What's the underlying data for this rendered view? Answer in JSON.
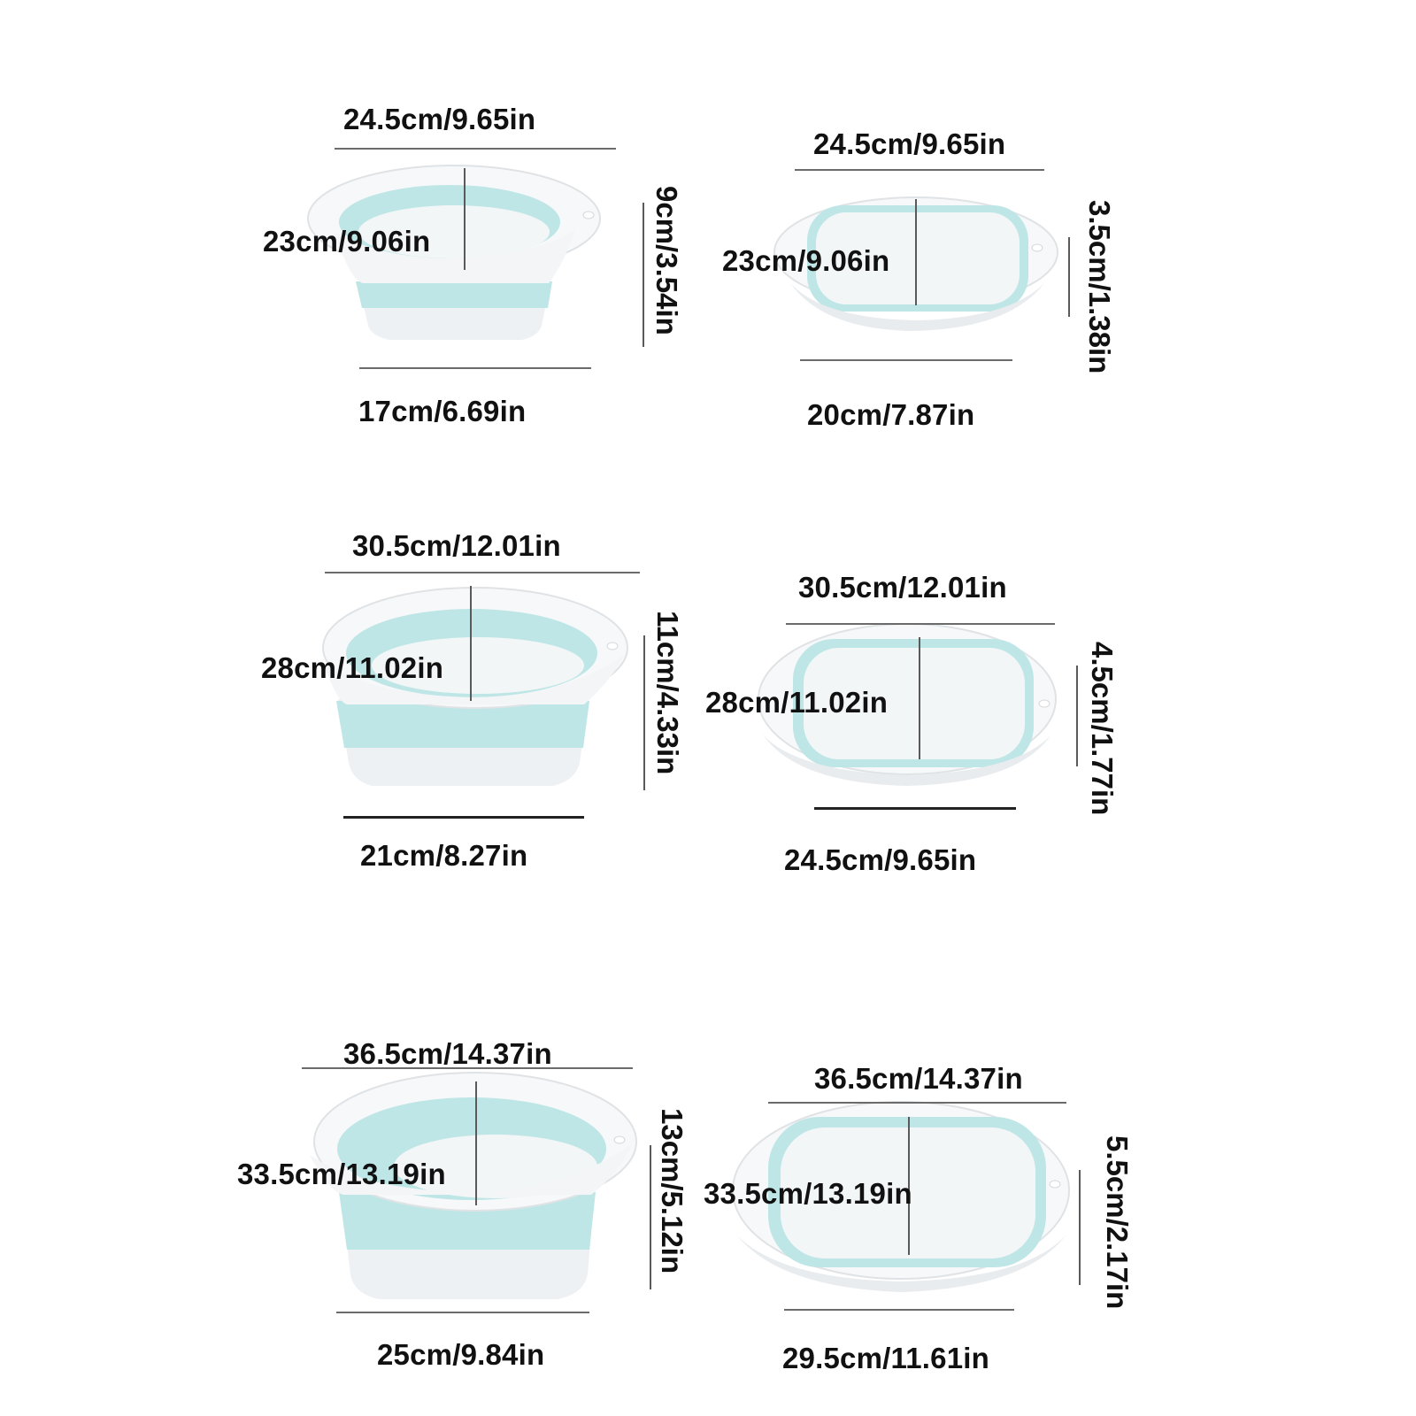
{
  "colors": {
    "basin_white": "#f7f8f9",
    "basin_rim_shadow": "#e3e6e8",
    "silicone_teal": "#bfe6e6",
    "silicone_teal_dark": "#a8dada",
    "guide_line": "#6b6b6b"
  },
  "basins": [
    {
      "id": "small-unfolded",
      "state": "unfolded",
      "top_width": "24.5cm/9.65in",
      "depth": "23cm/9.06in",
      "height": "9cm/3.54in",
      "bottom_width": "17cm/6.69in"
    },
    {
      "id": "small-folded",
      "state": "folded",
      "top_width": "24.5cm/9.65in",
      "depth": "23cm/9.06in",
      "height": "3.5cm/1.38in",
      "bottom_width": "20cm/7.87in"
    },
    {
      "id": "medium-unfolded",
      "state": "unfolded",
      "top_width": "30.5cm/12.01in",
      "depth": "28cm/11.02in",
      "height": "11cm/4.33in",
      "bottom_width": "21cm/8.27in"
    },
    {
      "id": "medium-folded",
      "state": "folded",
      "top_width": "30.5cm/12.01in",
      "depth": "28cm/11.02in",
      "height": "4.5cm/1.77in",
      "bottom_width": "24.5cm/9.65in"
    },
    {
      "id": "large-unfolded",
      "state": "unfolded",
      "top_width": "36.5cm/14.37in",
      "depth": "33.5cm/13.19in",
      "height": "13cm/5.12in",
      "bottom_width": "25cm/9.84in"
    },
    {
      "id": "large-folded",
      "state": "folded",
      "top_width": "36.5cm/14.37in",
      "depth": "33.5cm/13.19in",
      "height": "5.5cm/2.17in",
      "bottom_width": "29.5cm/11.61in"
    }
  ]
}
